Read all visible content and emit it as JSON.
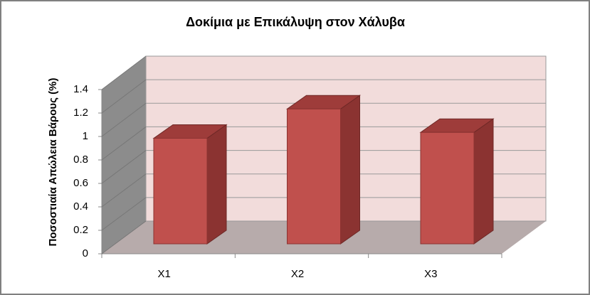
{
  "chart_data": {
    "type": "bar3d",
    "title": "Δοκίμια με Επικάλυψη στον Χάλυβα",
    "y_label": "Ποσοστιαία  Απώλεια Βάρους (%)",
    "categories": [
      "X1",
      "X2",
      "X3"
    ],
    "values": [
      0.9,
      1.15,
      0.95
    ],
    "color": "#c0504d",
    "ylim": [
      0,
      1.4
    ],
    "yticks": [
      0,
      0.2,
      0.4,
      0.6,
      0.8,
      1,
      1.2,
      1.4
    ],
    "grid": true
  }
}
